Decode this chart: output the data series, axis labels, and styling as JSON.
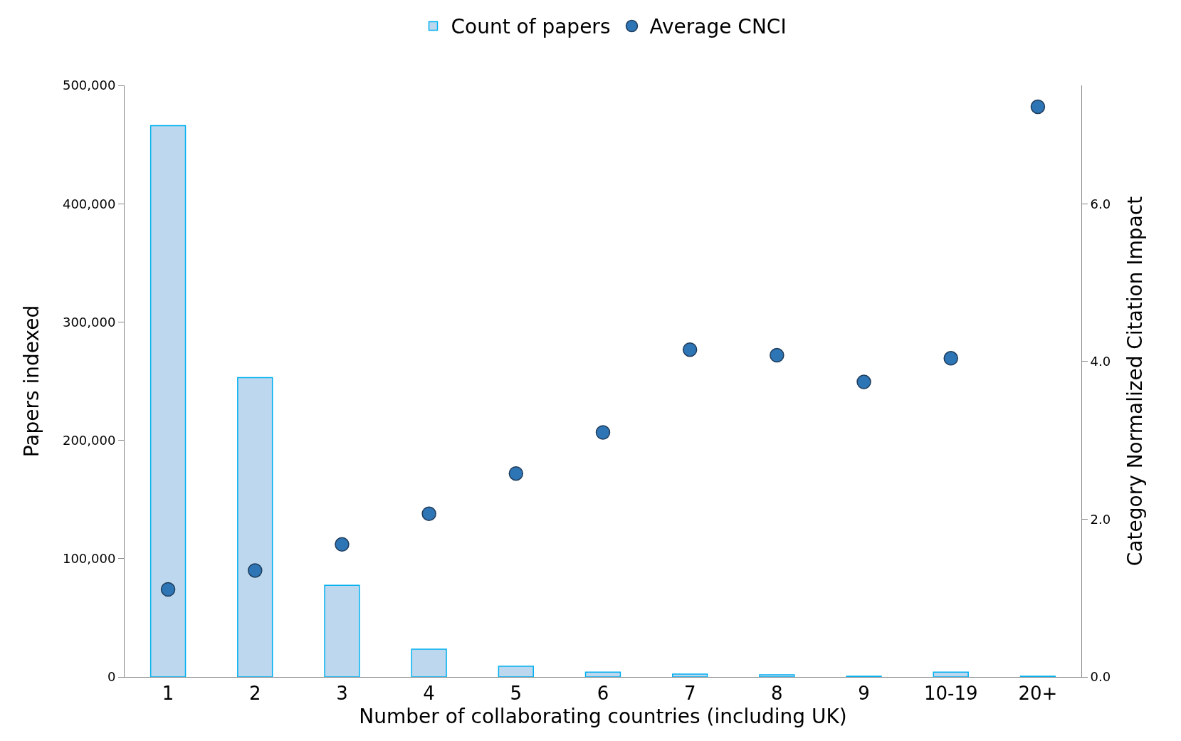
{
  "chart_data": {
    "type": "bar",
    "xlabel": "Number of collaborating countries (including UK)",
    "ylabel": "Papers indexed",
    "y2label": "Category Normalized Citation Impact",
    "categories": [
      "1",
      "2",
      "3",
      "4",
      "5",
      "6",
      "7",
      "8",
      "9",
      "10-19",
      "20+"
    ],
    "series": [
      {
        "name": "Count of papers",
        "type": "bar",
        "color": "#bdd7ee",
        "values": [
          466000,
          253000,
          77500,
          23500,
          9000,
          4000,
          2400,
          1800,
          600,
          4000,
          600
        ]
      },
      {
        "name": "Average CNCI",
        "type": "scatter",
        "axis": "y2",
        "marker": "circle",
        "color": "#2e75b6",
        "values": [
          1.11,
          1.35,
          1.68,
          2.07,
          2.58,
          3.1,
          4.15,
          4.08,
          3.74,
          4.04,
          7.23
        ]
      }
    ],
    "ylim": [
      0,
      500000
    ],
    "yticks": [
      {
        "value": 0,
        "label": "0"
      },
      {
        "value": 100000,
        "label": "100,000"
      },
      {
        "value": 200000,
        "label": "200,000"
      },
      {
        "value": 300000,
        "label": "300,000"
      },
      {
        "value": 400000,
        "label": "400,000"
      },
      {
        "value": 500000,
        "label": "500,000"
      }
    ],
    "y2lim": [
      0,
      7.5
    ],
    "y2ticks": [
      {
        "value": 0,
        "label": "0.0"
      },
      {
        "value": 2,
        "label": "2.0"
      },
      {
        "value": 4,
        "label": "4.0"
      },
      {
        "value": 6,
        "label": "6.0"
      }
    ],
    "grid": false,
    "legend": "top"
  }
}
